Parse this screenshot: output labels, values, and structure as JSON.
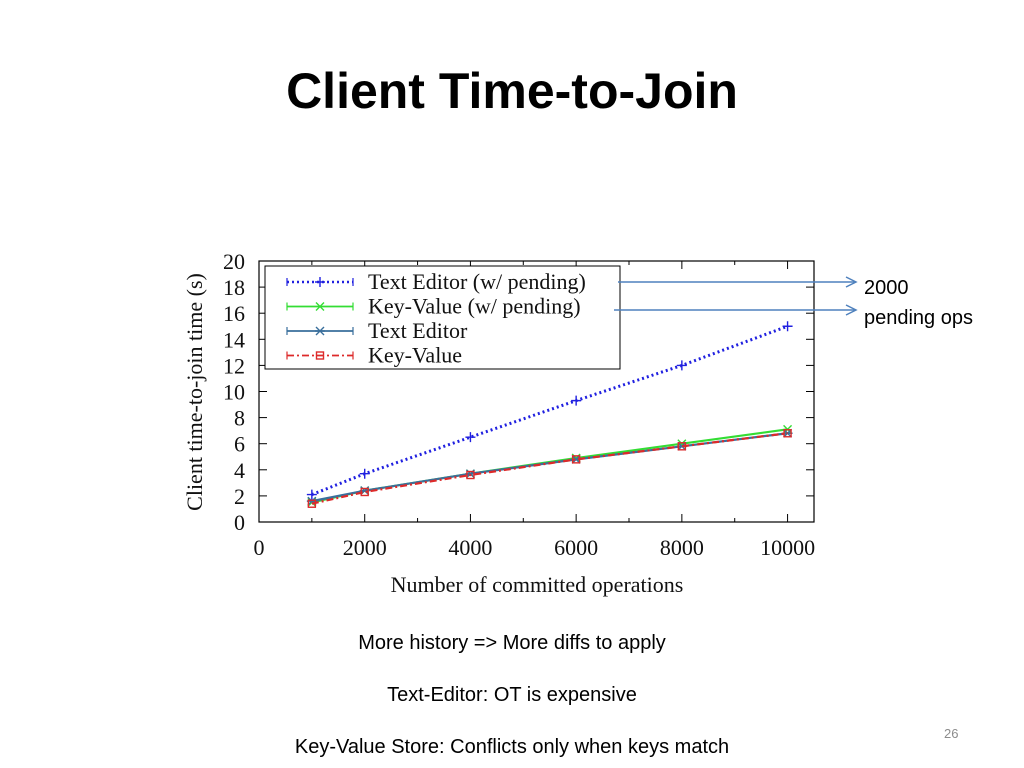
{
  "slide": {
    "title": "Client Time-to-Join",
    "annotation_line1": "2000",
    "annotation_line2": "pending ops",
    "bullets": [
      "More history => More diffs to apply",
      "Text-Editor: OT is expensive",
      "Key-Value Store: Conflicts only when keys match"
    ],
    "page_number": "26"
  },
  "chart_data": {
    "type": "line",
    "title": "",
    "xlabel": "Number of committed operations",
    "ylabel": "Client time-to-join time (s)",
    "xlim": [
      0,
      10500
    ],
    "ylim": [
      0,
      20
    ],
    "xticks": [
      0,
      2000,
      4000,
      6000,
      8000,
      10000
    ],
    "yticks": [
      0,
      2,
      4,
      6,
      8,
      10,
      12,
      14,
      16,
      18,
      20
    ],
    "grid": false,
    "legend_position": "top-left",
    "x": [
      1000,
      2000,
      4000,
      6000,
      8000,
      10000
    ],
    "series": [
      {
        "name": "Text Editor (w/ pending)",
        "color": "#2020e0",
        "style": "dotted",
        "marker": "plus",
        "values": [
          2.1,
          3.7,
          6.5,
          9.3,
          12.0,
          15.0
        ]
      },
      {
        "name": "Key-Value (w/ pending)",
        "color": "#33dd33",
        "style": "solid",
        "marker": "x",
        "values": [
          1.5,
          2.4,
          3.7,
          4.9,
          6.0,
          7.1
        ]
      },
      {
        "name": "Text Editor",
        "color": "#3a6f9c",
        "style": "solid",
        "marker": "star",
        "values": [
          1.6,
          2.4,
          3.7,
          4.8,
          5.8,
          6.8
        ]
      },
      {
        "name": "Key-Value",
        "color": "#dd2a2a",
        "style": "dashdot",
        "marker": "square",
        "values": [
          1.4,
          2.3,
          3.6,
          4.8,
          5.8,
          6.8
        ]
      }
    ]
  }
}
